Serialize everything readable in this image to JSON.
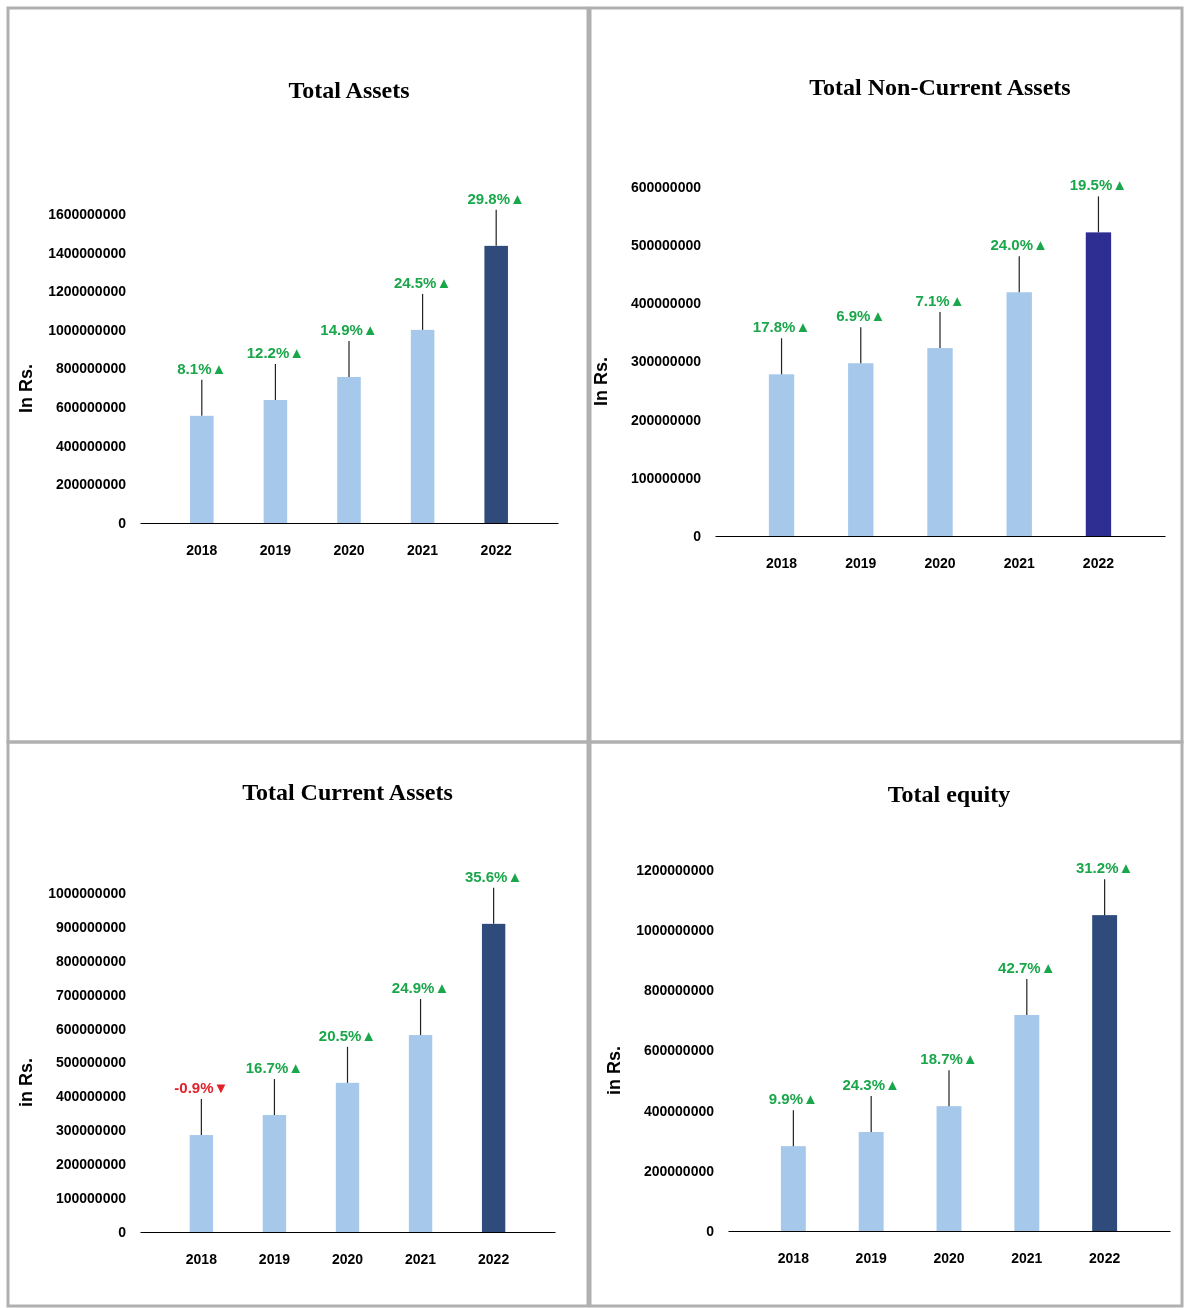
{
  "chart_data": [
    {
      "type": "bar",
      "title": "Total Assets",
      "ylabel": "In Rs.",
      "categories": [
        "2018",
        "2019",
        "2020",
        "2021",
        "2022"
      ],
      "values": [
        555000000,
        637000000,
        756000000,
        1000000000,
        1435000000
      ],
      "colors": [
        "#a6c8ea",
        "#a6c8ea",
        "#a6c8ea",
        "#a6c8ea",
        "#2f4b7c"
      ],
      "ylim": [
        0,
        1600000000
      ],
      "yticks": [
        0,
        200000000,
        400000000,
        600000000,
        800000000,
        1000000000,
        1200000000,
        1400000000,
        1600000000
      ],
      "grid": false,
      "annotations": [
        {
          "text": "8.1%▲",
          "x": "2018",
          "y": 555000000
        },
        {
          "text": "12.2%▲",
          "x": "2019",
          "y": 637000000
        },
        {
          "text": "14.9%▲",
          "x": "2020",
          "y": 756000000
        },
        {
          "text": "24.5%▲",
          "x": "2021",
          "y": 1000000000
        },
        {
          "text": "29.8%▲",
          "x": "2022",
          "y": 1435000000
        }
      ]
    },
    {
      "type": "bar",
      "title": "Total Non-Current Assets",
      "ylabel": "In Rs.",
      "categories": [
        "2018",
        "2019",
        "2020",
        "2021",
        "2022"
      ],
      "values": [
        278000000,
        297000000,
        323000000,
        419000000,
        522000000
      ],
      "colors": [
        "#a6c8ea",
        "#a6c8ea",
        "#a6c8ea",
        "#a6c8ea",
        "#2e2d92"
      ],
      "ylim": [
        0,
        600000000
      ],
      "yticks": [
        0,
        100000000,
        200000000,
        300000000,
        400000000,
        500000000,
        600000000
      ],
      "grid": false,
      "annotations": [
        {
          "text": "17.8%▲",
          "x": "2018",
          "y": 278000000
        },
        {
          "text": "6.9%▲",
          "x": "2019",
          "y": 297000000
        },
        {
          "text": "7.1%▲",
          "x": "2020",
          "y": 323000000
        },
        {
          "text": "24.0%▲",
          "x": "2021",
          "y": 419000000
        },
        {
          "text": "19.5%▲",
          "x": "2022",
          "y": 522000000
        }
      ]
    },
    {
      "type": "bar",
      "title": "Total Current Assets",
      "ylabel": "in Rs.",
      "categories": [
        "2018",
        "2019",
        "2020",
        "2021",
        "2022"
      ],
      "values": [
        286000000,
        345000000,
        440000000,
        581000000,
        909000000
      ],
      "colors": [
        "#a6c8ea",
        "#a6c8ea",
        "#a6c8ea",
        "#a6c8ea",
        "#2f4b7c"
      ],
      "ylim": [
        0,
        1000000000
      ],
      "yticks": [
        0,
        100000000,
        200000000,
        300000000,
        400000000,
        500000000,
        600000000,
        700000000,
        800000000,
        900000000,
        1000000000
      ],
      "grid": false,
      "annotations": [
        {
          "text": "-0.9%▼",
          "x": "2018",
          "y": 286000000
        },
        {
          "text": "16.7%▲",
          "x": "2019",
          "y": 345000000
        },
        {
          "text": "20.5%▲",
          "x": "2020",
          "y": 440000000
        },
        {
          "text": "24.9%▲",
          "x": "2021",
          "y": 581000000
        },
        {
          "text": "35.6%▲",
          "x": "2022",
          "y": 909000000
        }
      ]
    },
    {
      "type": "bar",
      "title": "Total equity",
      "ylabel": "in Rs.",
      "categories": [
        "2018",
        "2019",
        "2020",
        "2021",
        "2022"
      ],
      "values": [
        282000000,
        329000000,
        415000000,
        718000000,
        1050000000
      ],
      "colors": [
        "#a6c8ea",
        "#a6c8ea",
        "#a6c8ea",
        "#a6c8ea",
        "#2f4b7c"
      ],
      "ylim": [
        0,
        1200000000
      ],
      "yticks": [
        0,
        200000000,
        400000000,
        600000000,
        800000000,
        1000000000,
        1200000000
      ],
      "grid": false,
      "annotations": [
        {
          "text": "9.9%▲",
          "x": "2018",
          "y": 282000000
        },
        {
          "text": "24.3%▲",
          "x": "2019",
          "y": 329000000
        },
        {
          "text": "18.7%▲",
          "x": "2020",
          "y": 415000000
        },
        {
          "text": "42.7%▲",
          "x": "2021",
          "y": 718000000
        },
        {
          "text": "31.2%▲",
          "x": "2022",
          "y": 1050000000
        }
      ]
    }
  ]
}
